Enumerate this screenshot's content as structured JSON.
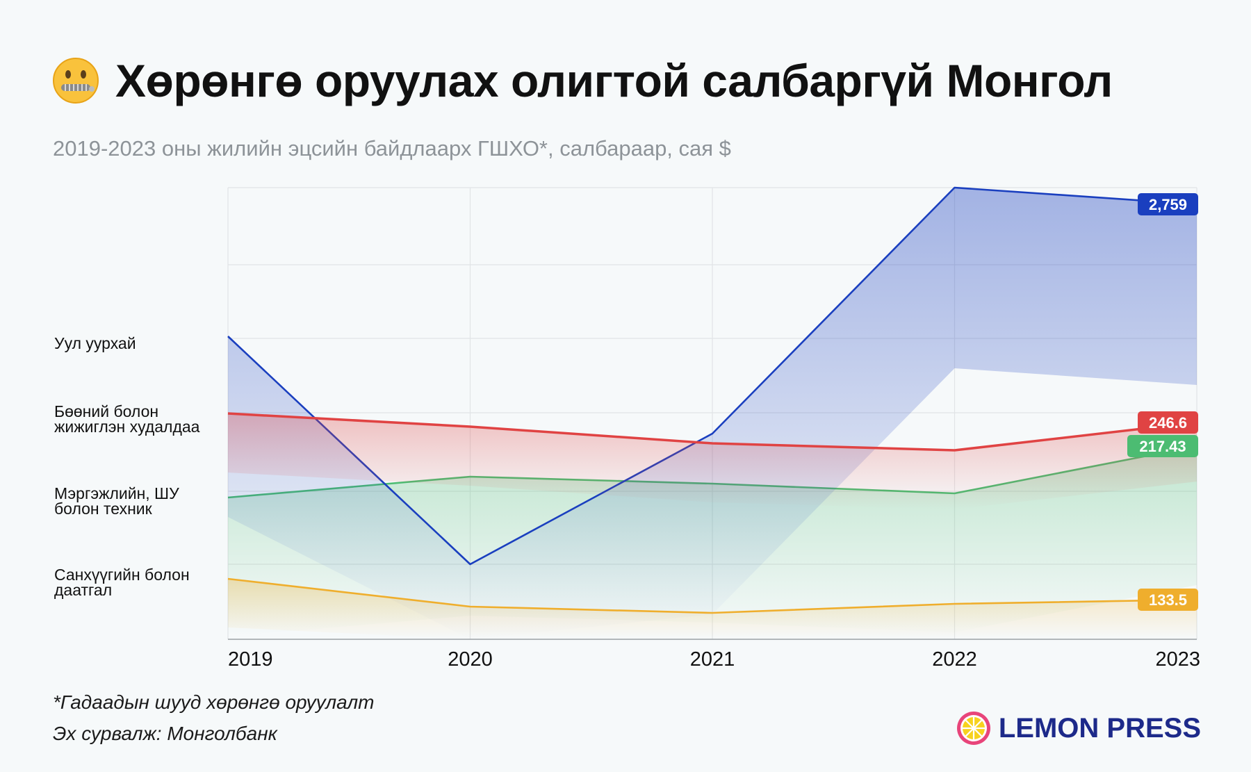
{
  "header": {
    "title": "Хөрөнгө оруулах олигтой салбаргүй Монгол",
    "title_icon": "zipper-mouth-face-icon",
    "subtitle": "2019-2023 оны жилийн эцсийн байдлаарх ГШХО*, салбараар, сая $"
  },
  "footer": {
    "note": "*Гадаадын шууд хөрөнгө оруулалт",
    "source": "Эх сурвалж: Монголбанк",
    "brand": "LEMON PRESS",
    "brand_icon": "lemon-slice-icon"
  },
  "chart_data": {
    "type": "line",
    "x": [
      "2019",
      "2020",
      "2021",
      "2022",
      "2023"
    ],
    "grid": true,
    "legend": "left",
    "series": [
      {
        "name": "Уул уурхай",
        "values": [
          1260,
          20,
          930,
          2950,
          2759
        ],
        "end_label": "2,759",
        "color": "#1a3fbf"
      },
      {
        "name": "Бөөний болон\nжижиглэн худалдаа",
        "values": [
          289,
          272,
          252,
          243,
          246.6
        ],
        "end_label": "246.6",
        "color": "#e04343"
      },
      {
        "name": "Мэргэжлийн, ШУ\nболон техник",
        "values": [
          185,
          212,
          203,
          190,
          217.43
        ],
        "end_label": "217.43",
        "color": "#4cbc72"
      },
      {
        "name": "Санхүүгийн болон\nдаатгал",
        "values": [
          115,
          81,
          73,
          84,
          133.5
        ],
        "end_label": "133.5",
        "color": "#efae2d"
      }
    ]
  }
}
